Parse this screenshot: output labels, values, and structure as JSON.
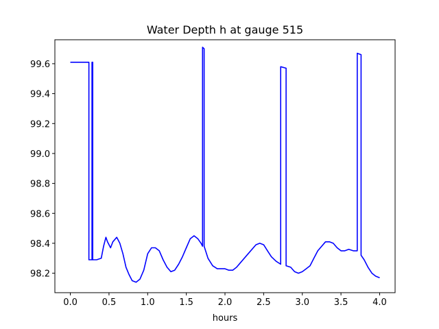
{
  "chart_data": {
    "type": "line",
    "title": "Water Depth h at gauge 515",
    "xlabel": "hours",
    "ylabel": "",
    "xlim": [
      -0.2,
      4.2
    ],
    "ylim": [
      98.07,
      99.76
    ],
    "xticks": [
      0.0,
      0.5,
      1.0,
      1.5,
      2.0,
      2.5,
      3.0,
      3.5,
      4.0
    ],
    "xtick_labels": [
      "0.0",
      "0.5",
      "1.0",
      "1.5",
      "2.0",
      "2.5",
      "3.0",
      "3.5",
      "4.0"
    ],
    "yticks": [
      98.2,
      98.4,
      98.6,
      98.8,
      99.0,
      99.2,
      99.4,
      99.6
    ],
    "ytick_labels": [
      "98.2",
      "98.4",
      "98.6",
      "98.8",
      "99.0",
      "99.2",
      "99.4",
      "99.6"
    ],
    "grid": false,
    "colors": {
      "line": "#0000ff",
      "axes": "#000000",
      "background": "#ffffff"
    },
    "series": [
      {
        "x": [
          0.0,
          0.24,
          0.24,
          0.28,
          0.28,
          0.29,
          0.29,
          0.34,
          0.4,
          0.43,
          0.46,
          0.48,
          0.52,
          0.55,
          0.6,
          0.64,
          0.68,
          0.72,
          0.76,
          0.8,
          0.85,
          0.9,
          0.95,
          1.0,
          1.05,
          1.1,
          1.15,
          1.2,
          1.25,
          1.3,
          1.35,
          1.4,
          1.45,
          1.5,
          1.55,
          1.6,
          1.65,
          1.69,
          1.71,
          1.71,
          1.73,
          1.73,
          1.78,
          1.84,
          1.9,
          2.0,
          2.05,
          2.1,
          2.15,
          2.2,
          2.3,
          2.4,
          2.45,
          2.5,
          2.55,
          2.6,
          2.66,
          2.72,
          2.72,
          2.79,
          2.79,
          2.85,
          2.9,
          2.95,
          3.0,
          3.05,
          3.1,
          3.15,
          3.2,
          3.3,
          3.35,
          3.4,
          3.45,
          3.5,
          3.55,
          3.6,
          3.66,
          3.71,
          3.71,
          3.76,
          3.76,
          3.8,
          3.85,
          3.9,
          3.95,
          4.0
        ],
        "y": [
          99.61,
          99.61,
          98.29,
          98.29,
          99.61,
          99.61,
          98.29,
          98.29,
          98.3,
          98.38,
          98.44,
          98.41,
          98.37,
          98.41,
          98.44,
          98.4,
          98.33,
          98.24,
          98.19,
          98.15,
          98.14,
          98.16,
          98.22,
          98.33,
          98.37,
          98.37,
          98.35,
          98.29,
          98.24,
          98.21,
          98.22,
          98.26,
          98.31,
          98.37,
          98.43,
          98.45,
          98.43,
          98.4,
          98.38,
          99.71,
          99.7,
          98.38,
          98.3,
          98.25,
          98.23,
          98.23,
          98.22,
          98.22,
          98.24,
          98.27,
          98.33,
          98.39,
          98.4,
          98.39,
          98.35,
          98.31,
          98.28,
          98.26,
          99.58,
          99.57,
          98.25,
          98.24,
          98.21,
          98.2,
          98.21,
          98.23,
          98.25,
          98.3,
          98.35,
          98.41,
          98.41,
          98.4,
          98.37,
          98.35,
          98.35,
          98.36,
          98.35,
          98.35,
          99.67,
          99.66,
          98.32,
          98.29,
          98.24,
          98.2,
          98.18,
          98.17
        ]
      }
    ]
  }
}
